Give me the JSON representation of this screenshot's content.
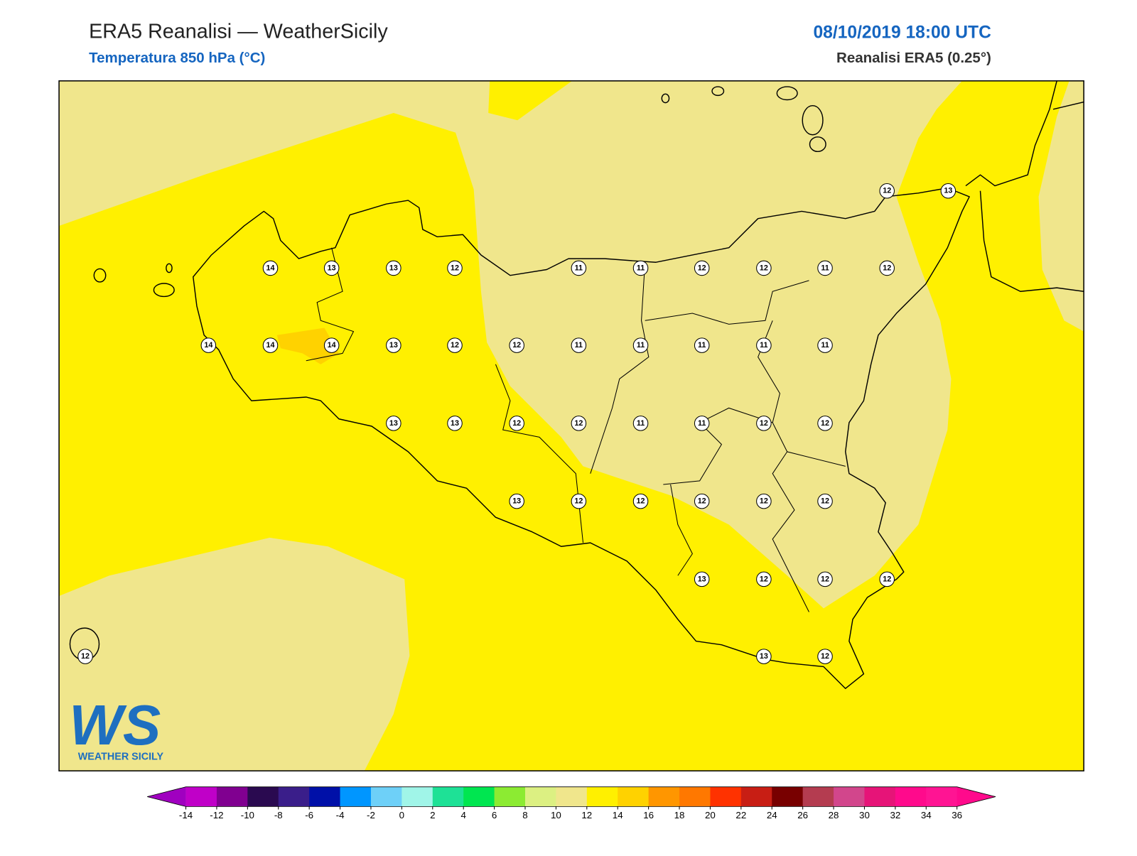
{
  "header": {
    "title": "ERA5 Reanalisi — WeatherSicily",
    "subtitle": "Temperatura 850 hPa (°C)",
    "date": "08/10/2019 18:00 UTC",
    "source": "Reanalisi ERA5 (0.25°)"
  },
  "map": {
    "points": [
      14,
      13,
      13,
      12,
      11,
      11,
      12,
      12,
      11,
      12,
      14,
      14,
      14,
      13,
      12,
      12,
      11,
      11,
      11,
      11,
      11,
      13,
      13,
      12,
      12,
      11,
      11,
      12,
      12,
      13,
      12,
      12,
      12,
      12,
      12,
      13,
      12,
      12,
      12,
      13,
      12,
      12,
      12,
      13
    ]
  },
  "logo": {
    "mark": "WS",
    "name": "WEATHER SICILY"
  },
  "colorbar": {
    "ticks": [
      -14,
      -12,
      -10,
      -8,
      -6,
      -4,
      -2,
      0,
      2,
      4,
      6,
      8,
      10,
      12,
      14,
      16,
      18,
      20,
      22,
      24,
      26,
      28,
      30,
      32,
      34,
      36
    ],
    "under": "#a000c0",
    "over": "#ff0a8c",
    "colors": [
      "#c000c8",
      "#800090",
      "#2a0a50",
      "#3a1e8a",
      "#0010a8",
      "#0096ff",
      "#6ed0f8",
      "#a0f5e8",
      "#1ee196",
      "#00e650",
      "#8ceb32",
      "#dcf082",
      "#f0e68c",
      "#fff000",
      "#ffd200",
      "#ff9600",
      "#ff7800",
      "#ff3200",
      "#c81e14",
      "#780000",
      "#b43c50",
      "#d2468c",
      "#e61478",
      "#ff0a8c",
      "#ff1493"
    ]
  }
}
